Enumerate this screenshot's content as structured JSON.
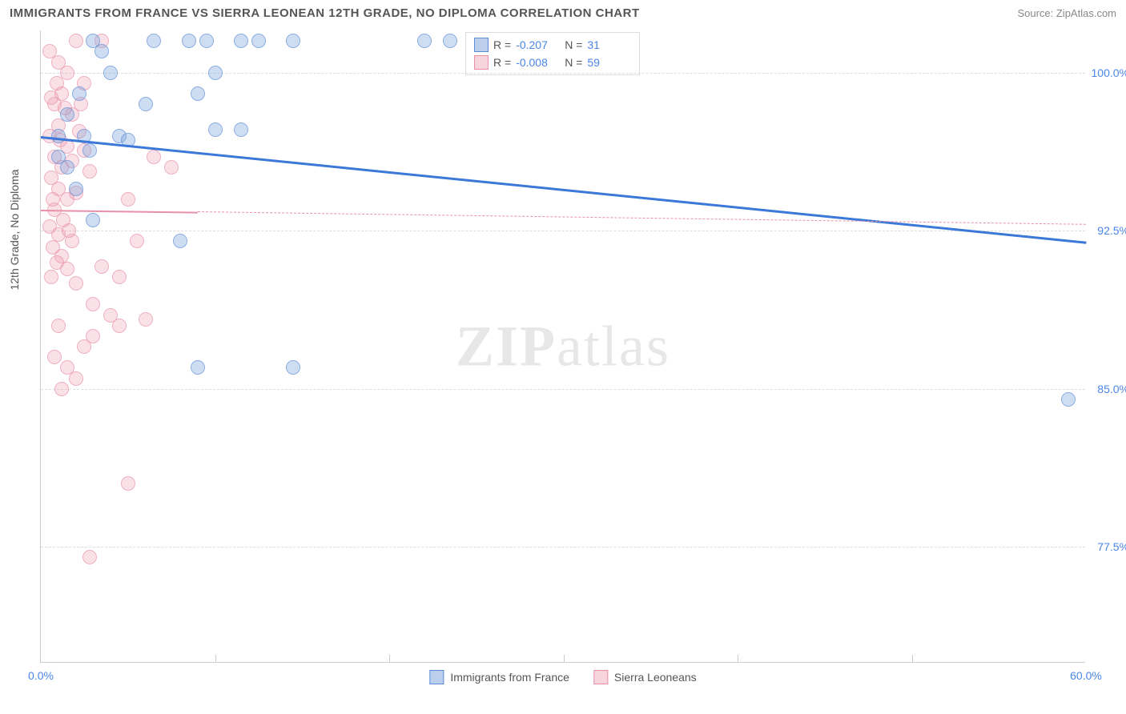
{
  "header": {
    "title": "IMMIGRANTS FROM FRANCE VS SIERRA LEONEAN 12TH GRADE, NO DIPLOMA CORRELATION CHART",
    "source": "Source: ZipAtlas.com"
  },
  "chart": {
    "type": "scatter",
    "y_axis_label": "12th Grade, No Diploma",
    "watermark": "ZIPatlas",
    "xlim": [
      0,
      60
    ],
    "ylim": [
      72,
      102
    ],
    "x_ticks": [
      {
        "v": 0,
        "label": "0.0%"
      },
      {
        "v": 10,
        "label": ""
      },
      {
        "v": 20,
        "label": ""
      },
      {
        "v": 30,
        "label": ""
      },
      {
        "v": 40,
        "label": ""
      },
      {
        "v": 50,
        "label": ""
      },
      {
        "v": 60,
        "label": "60.0%"
      }
    ],
    "y_ticks": [
      {
        "v": 77.5,
        "label": "77.5%"
      },
      {
        "v": 85.0,
        "label": "85.0%"
      },
      {
        "v": 92.5,
        "label": "92.5%"
      },
      {
        "v": 100.0,
        "label": "100.0%"
      }
    ],
    "colors": {
      "series_a_fill": "rgba(120,160,220,0.5)",
      "series_a_stroke": "#5b8dd6",
      "series_b_fill": "rgba(240,160,180,0.45)",
      "series_b_stroke": "#e890a8",
      "trend_a": "#3b78d8",
      "trend_b": "#e890a8",
      "axis_text": "#4a86e8",
      "grid": "#ddd",
      "background": "#ffffff"
    },
    "marker_radius": 9,
    "legend_top": [
      {
        "swatch": "a",
        "r_label": "R =",
        "r_value": "-0.207",
        "n_label": "N =",
        "n_value": "31"
      },
      {
        "swatch": "b",
        "r_label": "R =",
        "r_value": "-0.008",
        "n_label": "N =",
        "n_value": "59"
      }
    ],
    "legend_bottom": [
      {
        "swatch": "a",
        "label": "Immigrants from France"
      },
      {
        "swatch": "b",
        "label": "Sierra Leoneans"
      }
    ],
    "trend_lines": [
      {
        "series": "a",
        "x1": 0,
        "y1": 97.0,
        "x2": 60,
        "y2": 92.0,
        "solid": true,
        "width": 3
      },
      {
        "series": "b",
        "x1": 0,
        "y1": 93.5,
        "x2": 9,
        "y2": 93.4,
        "solid": true,
        "width": 2
      },
      {
        "series": "b",
        "x1": 9,
        "y1": 93.4,
        "x2": 60,
        "y2": 92.8,
        "solid": false,
        "width": 1.5
      }
    ],
    "series_a_points": [
      {
        "x": 3.0,
        "y": 101.5
      },
      {
        "x": 4.0,
        "y": 100.0
      },
      {
        "x": 8.5,
        "y": 101.5
      },
      {
        "x": 9.5,
        "y": 101.5
      },
      {
        "x": 11.5,
        "y": 101.5
      },
      {
        "x": 12.5,
        "y": 101.5
      },
      {
        "x": 14.5,
        "y": 101.5
      },
      {
        "x": 22.0,
        "y": 101.5
      },
      {
        "x": 23.5,
        "y": 101.5
      },
      {
        "x": 10.0,
        "y": 100.0
      },
      {
        "x": 6.0,
        "y": 98.5
      },
      {
        "x": 9.0,
        "y": 99.0
      },
      {
        "x": 4.5,
        "y": 97.0
      },
      {
        "x": 2.5,
        "y": 97.0
      },
      {
        "x": 10.0,
        "y": 97.3
      },
      {
        "x": 11.5,
        "y": 97.3
      },
      {
        "x": 1.0,
        "y": 96.0
      },
      {
        "x": 1.5,
        "y": 95.5
      },
      {
        "x": 2.8,
        "y": 96.3
      },
      {
        "x": 5.0,
        "y": 96.8
      },
      {
        "x": 2.0,
        "y": 94.5
      },
      {
        "x": 3.0,
        "y": 93.0
      },
      {
        "x": 8.0,
        "y": 92.0
      },
      {
        "x": 9.0,
        "y": 86.0
      },
      {
        "x": 14.5,
        "y": 86.0
      },
      {
        "x": 59.0,
        "y": 84.5
      },
      {
        "x": 1.5,
        "y": 98.0
      },
      {
        "x": 3.5,
        "y": 101.0
      },
      {
        "x": 6.5,
        "y": 101.5
      },
      {
        "x": 2.2,
        "y": 99.0
      },
      {
        "x": 1.0,
        "y": 97.0
      }
    ],
    "series_b_points": [
      {
        "x": 0.5,
        "y": 101.0
      },
      {
        "x": 1.0,
        "y": 100.5
      },
      {
        "x": 1.5,
        "y": 100.0
      },
      {
        "x": 2.0,
        "y": 101.5
      },
      {
        "x": 3.5,
        "y": 101.5
      },
      {
        "x": 2.5,
        "y": 99.5
      },
      {
        "x": 1.2,
        "y": 99.0
      },
      {
        "x": 0.8,
        "y": 98.5
      },
      {
        "x": 1.8,
        "y": 98.0
      },
      {
        "x": 1.0,
        "y": 97.5
      },
      {
        "x": 2.2,
        "y": 97.2
      },
      {
        "x": 0.5,
        "y": 97.0
      },
      {
        "x": 1.5,
        "y": 96.5
      },
      {
        "x": 2.5,
        "y": 96.3
      },
      {
        "x": 0.8,
        "y": 96.0
      },
      {
        "x": 1.8,
        "y": 95.8
      },
      {
        "x": 1.2,
        "y": 95.5
      },
      {
        "x": 2.8,
        "y": 95.3
      },
      {
        "x": 0.6,
        "y": 95.0
      },
      {
        "x": 1.0,
        "y": 94.5
      },
      {
        "x": 2.0,
        "y": 94.3
      },
      {
        "x": 1.5,
        "y": 94.0
      },
      {
        "x": 6.5,
        "y": 96.0
      },
      {
        "x": 7.5,
        "y": 95.5
      },
      {
        "x": 5.0,
        "y": 94.0
      },
      {
        "x": 0.8,
        "y": 93.5
      },
      {
        "x": 1.3,
        "y": 93.0
      },
      {
        "x": 0.5,
        "y": 92.7
      },
      {
        "x": 1.0,
        "y": 92.3
      },
      {
        "x": 1.8,
        "y": 92.0
      },
      {
        "x": 0.7,
        "y": 91.7
      },
      {
        "x": 1.2,
        "y": 91.3
      },
      {
        "x": 0.9,
        "y": 91.0
      },
      {
        "x": 1.5,
        "y": 90.7
      },
      {
        "x": 0.6,
        "y": 90.3
      },
      {
        "x": 2.0,
        "y": 90.0
      },
      {
        "x": 3.5,
        "y": 90.8
      },
      {
        "x": 4.5,
        "y": 90.3
      },
      {
        "x": 5.5,
        "y": 92.0
      },
      {
        "x": 3.0,
        "y": 89.0
      },
      {
        "x": 4.0,
        "y": 88.5
      },
      {
        "x": 4.5,
        "y": 88.0
      },
      {
        "x": 6.0,
        "y": 88.3
      },
      {
        "x": 1.0,
        "y": 88.0
      },
      {
        "x": 2.5,
        "y": 87.0
      },
      {
        "x": 1.5,
        "y": 86.0
      },
      {
        "x": 0.8,
        "y": 86.5
      },
      {
        "x": 3.0,
        "y": 87.5
      },
      {
        "x": 2.0,
        "y": 85.5
      },
      {
        "x": 1.2,
        "y": 85.0
      },
      {
        "x": 5.0,
        "y": 80.5
      },
      {
        "x": 2.8,
        "y": 77.0
      },
      {
        "x": 0.6,
        "y": 98.8
      },
      {
        "x": 1.4,
        "y": 98.3
      },
      {
        "x": 0.9,
        "y": 99.5
      },
      {
        "x": 2.3,
        "y": 98.5
      },
      {
        "x": 1.1,
        "y": 96.8
      },
      {
        "x": 0.7,
        "y": 94.0
      },
      {
        "x": 1.6,
        "y": 92.5
      }
    ]
  }
}
